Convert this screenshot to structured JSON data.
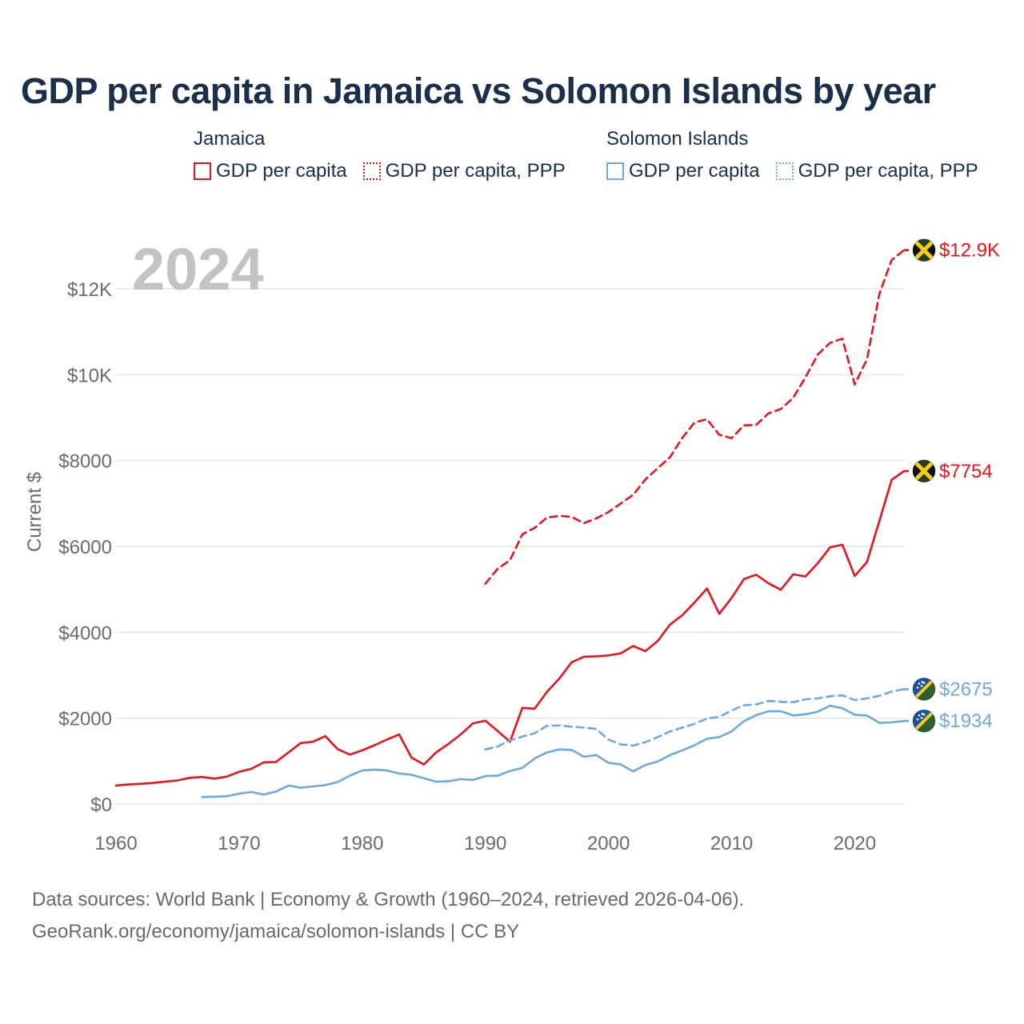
{
  "title": "GDP per capita in Jamaica vs Solomon Islands by year",
  "legend": {
    "groups": [
      {
        "name": "Jamaica",
        "items": [
          "GDP per capita",
          "GDP per capita, PPP"
        ]
      },
      {
        "name": "Solomon Islands",
        "items": [
          "GDP per capita",
          "GDP per capita, PPP"
        ]
      }
    ]
  },
  "year_label": "2024",
  "footer": {
    "line1": "Data sources: World Bank | Economy & Growth (1960–2024, retrieved 2026-04-06).",
    "line2": "GeoRank.org/economy/jamaica/solomon-islands | CC BY"
  },
  "colors": {
    "jamaica": "#e8141c",
    "solomon": "#6fa8dc",
    "grid": "#e6e6e6",
    "axis_text": "#6b6b6b",
    "year_label": "#c3c3c3"
  },
  "chart_data": {
    "type": "line",
    "title": "GDP per capita in Jamaica vs Solomon Islands by year",
    "xlabel": "",
    "ylabel": "Current $",
    "xlim": [
      1960,
      2024
    ],
    "ylim": [
      0,
      12000
    ],
    "x_ticks": [
      1960,
      1970,
      1980,
      1990,
      2000,
      2010,
      2020
    ],
    "y_ticks": [
      0,
      2000,
      4000,
      6000,
      8000,
      10000,
      12000
    ],
    "y_tick_labels": [
      "$0",
      "$2000",
      "$4000",
      "$6000",
      "$8000",
      "$10K",
      "$12K"
    ],
    "grid": true,
    "series": [
      {
        "name": "Jamaica GDP per capita",
        "country": "Jamaica",
        "style": "solid",
        "color": "#e8141c",
        "end_label": "$7754",
        "x": [
          1960,
          1961,
          1962,
          1963,
          1964,
          1965,
          1966,
          1967,
          1968,
          1969,
          1970,
          1971,
          1972,
          1973,
          1974,
          1975,
          1976,
          1977,
          1978,
          1979,
          1980,
          1981,
          1982,
          1983,
          1984,
          1985,
          1986,
          1987,
          1988,
          1989,
          1990,
          1991,
          1992,
          1993,
          1994,
          1995,
          1996,
          1997,
          1998,
          1999,
          2000,
          2001,
          2002,
          2003,
          2004,
          2005,
          2006,
          2007,
          2008,
          2009,
          2010,
          2011,
          2012,
          2013,
          2014,
          2015,
          2016,
          2017,
          2018,
          2019,
          2020,
          2021,
          2022,
          2023,
          2024
        ],
        "y": [
          430,
          455,
          470,
          490,
          520,
          550,
          610,
          630,
          590,
          640,
          750,
          820,
          970,
          980,
          1200,
          1420,
          1450,
          1580,
          1280,
          1150,
          1250,
          1370,
          1500,
          1620,
          1080,
          920,
          1200,
          1400,
          1620,
          1880,
          1940,
          1700,
          1450,
          2240,
          2220,
          2610,
          2920,
          3300,
          3430,
          3440,
          3460,
          3510,
          3680,
          3560,
          3800,
          4180,
          4400,
          4700,
          5020,
          4430,
          4800,
          5240,
          5340,
          5140,
          4990,
          5350,
          5300,
          5610,
          5980,
          6040,
          5310,
          5640,
          6590,
          7550,
          7754
        ]
      },
      {
        "name": "Jamaica GDP per capita, PPP",
        "country": "Jamaica",
        "style": "dashed",
        "color": "#e8141c",
        "end_label": "$12.9K",
        "x": [
          1990,
          1991,
          1992,
          1993,
          1994,
          1995,
          1996,
          1997,
          1998,
          1999,
          2000,
          2001,
          2002,
          2003,
          2004,
          2005,
          2006,
          2007,
          2008,
          2009,
          2010,
          2011,
          2012,
          2013,
          2014,
          2015,
          2016,
          2017,
          2018,
          2019,
          2020,
          2021,
          2022,
          2023,
          2024
        ],
        "y": [
          5130,
          5480,
          5680,
          6280,
          6430,
          6670,
          6710,
          6690,
          6540,
          6650,
          6800,
          7000,
          7200,
          7560,
          7820,
          8080,
          8530,
          8890,
          8960,
          8600,
          8520,
          8820,
          8830,
          9100,
          9200,
          9460,
          9940,
          10470,
          10740,
          10840,
          9770,
          10360,
          11880,
          12670,
          12900
        ]
      },
      {
        "name": "Solomon Islands GDP per capita",
        "country": "Solomon Islands",
        "style": "solid",
        "color": "#6fa8dc",
        "end_label": "$1934",
        "x": [
          1967,
          1968,
          1969,
          1970,
          1971,
          1972,
          1973,
          1974,
          1975,
          1976,
          1977,
          1978,
          1979,
          1980,
          1981,
          1982,
          1983,
          1984,
          1985,
          1986,
          1987,
          1988,
          1989,
          1990,
          1991,
          1992,
          1993,
          1994,
          1995,
          1996,
          1997,
          1998,
          1999,
          2000,
          2001,
          2002,
          2003,
          2004,
          2005,
          2006,
          2007,
          2008,
          2009,
          2010,
          2011,
          2012,
          2013,
          2014,
          2015,
          2016,
          2017,
          2018,
          2019,
          2020,
          2021,
          2022,
          2023,
          2024
        ],
        "y": [
          160,
          170,
          180,
          240,
          280,
          220,
          290,
          430,
          380,
          410,
          440,
          510,
          660,
          780,
          800,
          780,
          710,
          680,
          600,
          520,
          530,
          580,
          560,
          650,
          660,
          770,
          840,
          1060,
          1200,
          1270,
          1260,
          1100,
          1140,
          960,
          920,
          760,
          910,
          990,
          1140,
          1250,
          1370,
          1520,
          1560,
          1690,
          1930,
          2070,
          2160,
          2160,
          2060,
          2090,
          2150,
          2290,
          2230,
          2080,
          2060,
          1890,
          1900,
          1934
        ]
      },
      {
        "name": "Solomon Islands GDP per capita, PPP",
        "country": "Solomon Islands",
        "style": "dashed",
        "color": "#6fa8dc",
        "end_label": "$2675",
        "x": [
          1990,
          1991,
          1992,
          1993,
          1994,
          1995,
          1996,
          1997,
          1998,
          1999,
          2000,
          2001,
          2002,
          2003,
          2004,
          2005,
          2006,
          2007,
          2008,
          2009,
          2010,
          2011,
          2012,
          2013,
          2014,
          2015,
          2016,
          2017,
          2018,
          2019,
          2020,
          2021,
          2022,
          2023,
          2024
        ],
        "y": [
          1270,
          1340,
          1480,
          1570,
          1650,
          1820,
          1830,
          1800,
          1780,
          1750,
          1500,
          1390,
          1360,
          1440,
          1560,
          1690,
          1780,
          1870,
          1990,
          2030,
          2180,
          2300,
          2320,
          2400,
          2380,
          2370,
          2440,
          2460,
          2510,
          2530,
          2420,
          2460,
          2520,
          2620,
          2675
        ]
      }
    ]
  }
}
